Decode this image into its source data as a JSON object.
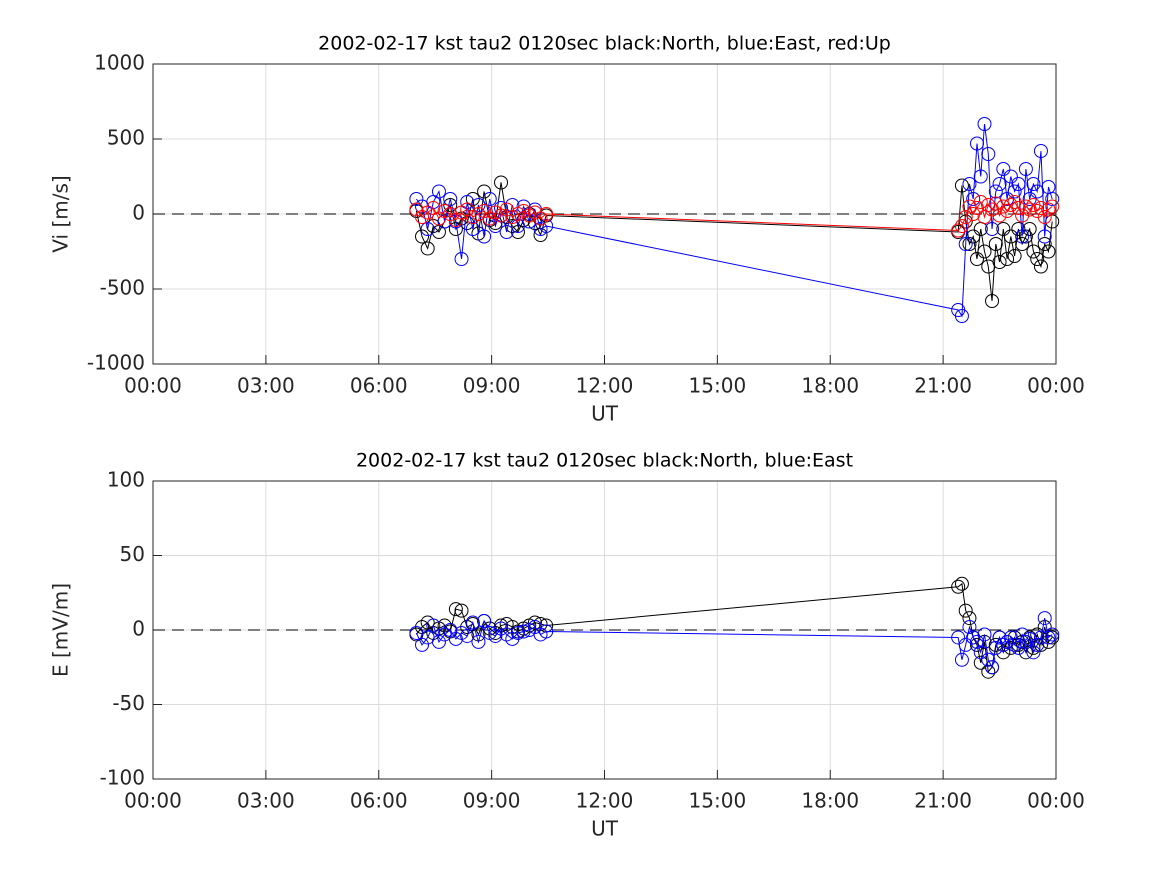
{
  "chart_data": [
    {
      "type": "line",
      "title": "2002-02-17 kst tau2 0120sec black:North, blue:East, red:Up",
      "xlabel": "UT",
      "ylabel": "Vi [m/s]",
      "x": [
        7.0,
        7.15,
        7.3,
        7.45,
        7.6,
        7.75,
        7.9,
        8.05,
        8.2,
        8.35,
        8.5,
        8.65,
        8.8,
        8.95,
        9.1,
        9.25,
        9.4,
        9.55,
        9.7,
        9.85,
        10.0,
        10.15,
        10.3,
        10.45,
        21.4,
        21.5,
        21.6,
        21.7,
        21.8,
        21.9,
        22.0,
        22.1,
        22.2,
        22.3,
        22.4,
        22.5,
        22.6,
        22.7,
        22.8,
        22.9,
        23.0,
        23.1,
        23.2,
        23.3,
        23.4,
        23.5,
        23.6,
        23.7,
        23.8,
        23.9
      ],
      "series": [
        {
          "name": "North",
          "color": "#000000",
          "values": [
            20,
            -150,
            -230,
            -80,
            -120,
            -50,
            60,
            -100,
            -30,
            -60,
            100,
            -130,
            150,
            -40,
            -60,
            210,
            -20,
            -80,
            -120,
            -40,
            0,
            -60,
            -140,
            -10,
            -120,
            190,
            -50,
            -200,
            -150,
            -300,
            -100,
            -250,
            -350,
            -580,
            -200,
            -320,
            -100,
            -300,
            -150,
            -280,
            -100,
            -200,
            -150,
            -100,
            -250,
            -300,
            -350,
            -200,
            -250,
            -50
          ]
        },
        {
          "name": "East",
          "color": "#0000ff",
          "values": [
            100,
            50,
            -100,
            80,
            150,
            -50,
            100,
            -50,
            -300,
            80,
            -100,
            60,
            -150,
            100,
            -80,
            40,
            -120,
            60,
            -80,
            50,
            -50,
            30,
            -100,
            -80,
            -640,
            -680,
            -200,
            200,
            100,
            470,
            250,
            600,
            400,
            -100,
            150,
            200,
            300,
            100,
            250,
            150,
            200,
            -150,
            300,
            100,
            200,
            150,
            420,
            -150,
            180,
            100
          ]
        },
        {
          "name": "Up",
          "color": "#ff0000",
          "values": [
            30,
            -20,
            10,
            40,
            -30,
            20,
            0,
            -40,
            10,
            30,
            -20,
            0,
            20,
            -30,
            10,
            -10,
            30,
            -20,
            0,
            20,
            -10,
            10,
            -30,
            0,
            -110,
            -80,
            -20,
            50,
            0,
            40,
            80,
            -20,
            60,
            30,
            70,
            -10,
            50,
            20,
            60,
            80,
            40,
            -10,
            50,
            30,
            60,
            20,
            40,
            -20,
            30,
            50
          ]
        }
      ],
      "xlim": [
        0,
        24
      ],
      "xticks": [
        {
          "value": 0,
          "label": "00:00"
        },
        {
          "value": 3,
          "label": "03:00"
        },
        {
          "value": 6,
          "label": "06:00"
        },
        {
          "value": 9,
          "label": "09:00"
        },
        {
          "value": 12,
          "label": "12:00"
        },
        {
          "value": 15,
          "label": "15:00"
        },
        {
          "value": 18,
          "label": "18:00"
        },
        {
          "value": 21,
          "label": "21:00"
        },
        {
          "value": 24,
          "label": "00:00"
        }
      ],
      "ylim": [
        -1000,
        1000
      ],
      "yticks": [
        -1000,
        -500,
        0,
        500,
        1000
      ],
      "hline": 0,
      "grid": true
    },
    {
      "type": "line",
      "title": "2002-02-17 kst tau2 0120sec black:North, blue:East",
      "xlabel": "UT",
      "ylabel": "E [mV/m]",
      "x": [
        7.0,
        7.15,
        7.3,
        7.45,
        7.6,
        7.75,
        7.9,
        8.05,
        8.2,
        8.35,
        8.5,
        8.65,
        8.8,
        8.95,
        9.1,
        9.25,
        9.4,
        9.55,
        9.7,
        9.85,
        10.0,
        10.15,
        10.3,
        10.45,
        21.4,
        21.5,
        21.6,
        21.7,
        21.8,
        21.9,
        22.0,
        22.1,
        22.2,
        22.3,
        22.4,
        22.5,
        22.6,
        22.7,
        22.8,
        22.9,
        23.0,
        23.1,
        23.2,
        23.3,
        23.4,
        23.5,
        23.6,
        23.7,
        23.8,
        23.9
      ],
      "series": [
        {
          "name": "North",
          "color": "#000000",
          "values": [
            -3,
            2,
            5,
            -2,
            1,
            3,
            -1,
            14,
            13,
            2,
            4,
            -3,
            6,
            1,
            -2,
            3,
            4,
            2,
            -1,
            1,
            3,
            5,
            4,
            3,
            29,
            31,
            13,
            8,
            -5,
            -10,
            -22,
            -8,
            -28,
            -25,
            -10,
            -5,
            -15,
            -8,
            -12,
            -5,
            -10,
            -8,
            -15,
            -5,
            -12,
            -3,
            -10,
            2,
            -8,
            -5
          ]
        },
        {
          "name": "East",
          "color": "#0000ff",
          "values": [
            -2,
            -10,
            -5,
            3,
            -8,
            -3,
            0,
            -6,
            -2,
            -4,
            5,
            -8,
            6,
            -2,
            -4,
            1,
            -3,
            -6,
            -2,
            -1,
            0,
            2,
            -3,
            -1,
            -5,
            -20,
            -10,
            2,
            -5,
            -8,
            -15,
            -3,
            -20,
            -25,
            -12,
            -5,
            -10,
            -8,
            -5,
            -10,
            -12,
            -3,
            -8,
            -6,
            -15,
            -10,
            -5,
            8,
            -5,
            -3
          ]
        }
      ],
      "xlim": [
        0,
        24
      ],
      "xticks": [
        {
          "value": 0,
          "label": "00:00"
        },
        {
          "value": 3,
          "label": "03:00"
        },
        {
          "value": 6,
          "label": "06:00"
        },
        {
          "value": 9,
          "label": "09:00"
        },
        {
          "value": 12,
          "label": "12:00"
        },
        {
          "value": 15,
          "label": "15:00"
        },
        {
          "value": 18,
          "label": "18:00"
        },
        {
          "value": 21,
          "label": "21:00"
        },
        {
          "value": 24,
          "label": "00:00"
        }
      ],
      "ylim": [
        -100,
        100
      ],
      "yticks": [
        -100,
        -50,
        0,
        50,
        100
      ],
      "hline": 0,
      "grid": true
    }
  ]
}
